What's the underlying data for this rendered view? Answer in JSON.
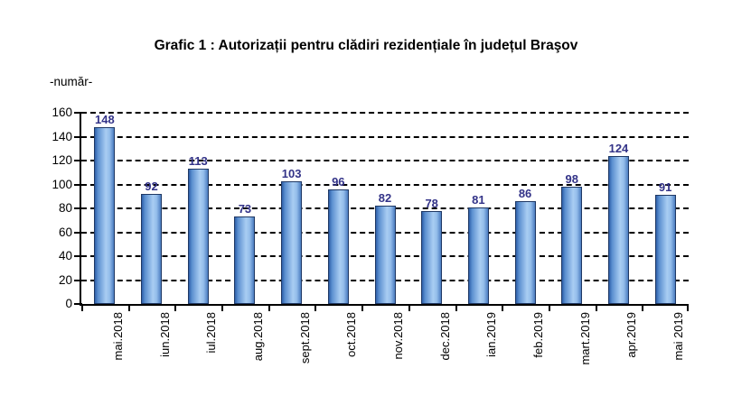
{
  "page": {
    "background": "#ffffff"
  },
  "chart_data": {
    "type": "bar",
    "title": "Grafic 1 : Autorizații pentru clădiri rezidențiale în județul Braşov",
    "unit_label": "-număr-",
    "xlabel": "",
    "ylabel": "-număr-",
    "categories": [
      "mai.2018",
      "iun.2018",
      "iul.2018",
      "aug.2018",
      "sept.2018",
      "oct.2018",
      "nov.2018",
      "dec.2018",
      "ian.2019",
      "feb.2019",
      "mart.2019",
      "apr.2019",
      "mai 2019"
    ],
    "values": [
      148,
      92,
      113,
      73,
      103,
      96,
      82,
      78,
      81,
      86,
      98,
      124,
      91
    ],
    "ylim": [
      0,
      160
    ],
    "yticks": [
      0,
      20,
      40,
      60,
      80,
      100,
      120,
      140,
      160
    ],
    "grid": "horizontal-dashed",
    "legend": "none",
    "colors": {
      "bar_edge": "#1f3864",
      "bar_dark": "#2d5fa8",
      "bar_light": "#a9cdf2",
      "value_label": "#333388",
      "axis": "#000000",
      "grid": "#000000",
      "background": "#ffffff"
    }
  }
}
